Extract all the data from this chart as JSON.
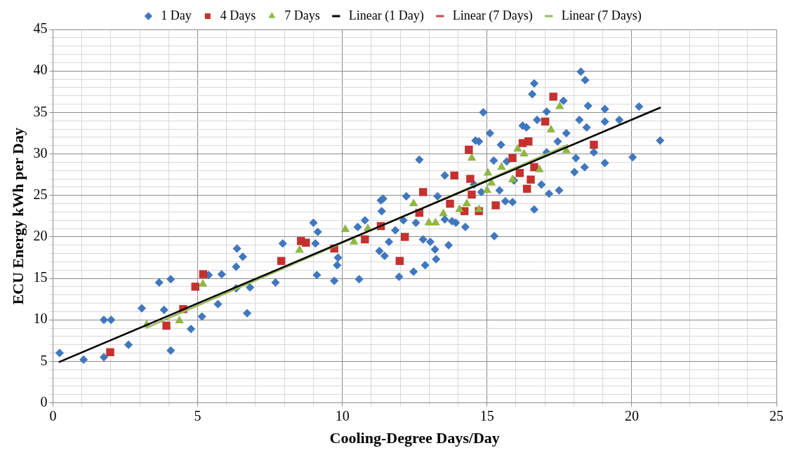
{
  "chart_data": {
    "type": "scatter",
    "xlabel": "Cooling-Degree Days/Day",
    "ylabel": "ECU Energy kWh per Day",
    "xlim": [
      0,
      25
    ],
    "ylim": [
      0,
      45
    ],
    "xticks": [
      0,
      {
        "value": 1,
        "label": null
      },
      {
        "value": 2,
        "label": null
      },
      {
        "value": 3,
        "label": null
      },
      {
        "value": 4,
        "label": null
      },
      5,
      {
        "value": 6,
        "label": null
      },
      {
        "value": 7,
        "label": null
      },
      {
        "value": 8,
        "label": null
      },
      {
        "value": 9,
        "label": null
      },
      10,
      {
        "value": 11,
        "label": null
      },
      {
        "value": 12,
        "label": null
      },
      {
        "value": 13,
        "label": null
      },
      {
        "value": 14,
        "label": null
      },
      15,
      {
        "value": 16,
        "label": null
      },
      {
        "value": 17,
        "label": null
      },
      {
        "value": 18,
        "label": null
      },
      {
        "value": 19,
        "label": null
      },
      20,
      {
        "value": 21,
        "label": null
      },
      {
        "value": 22,
        "label": null
      },
      {
        "value": 23,
        "label": null
      },
      {
        "value": 24,
        "label": null
      },
      25
    ],
    "yticks": [
      0,
      {
        "value": 1,
        "label": null
      },
      {
        "value": 2,
        "label": null
      },
      {
        "value": 3,
        "label": null
      },
      {
        "value": 4,
        "label": null
      },
      5,
      {
        "value": 6,
        "label": null
      },
      {
        "value": 7,
        "label": null
      },
      {
        "value": 8,
        "label": null
      },
      {
        "value": 9,
        "label": null
      },
      10,
      {
        "value": 11,
        "label": null
      },
      {
        "value": 12,
        "label": null
      },
      {
        "value": 13,
        "label": null
      },
      {
        "value": 14,
        "label": null
      },
      15,
      {
        "value": 16,
        "label": null
      },
      {
        "value": 17,
        "label": null
      },
      {
        "value": 18,
        "label": null
      },
      {
        "value": 19,
        "label": null
      },
      20,
      {
        "value": 21,
        "label": null
      },
      {
        "value": 22,
        "label": null
      },
      {
        "value": 23,
        "label": null
      },
      {
        "value": 24,
        "label": null
      },
      25,
      {
        "value": 26,
        "label": null
      },
      {
        "value": 27,
        "label": null
      },
      {
        "value": 28,
        "label": null
      },
      {
        "value": 29,
        "label": null
      },
      30,
      {
        "value": 31,
        "label": null
      },
      {
        "value": 32,
        "label": null
      },
      {
        "value": 33,
        "label": null
      },
      {
        "value": 34,
        "label": null
      },
      35,
      {
        "value": 36,
        "label": null
      },
      {
        "value": 37,
        "label": null
      },
      {
        "value": 38,
        "label": null
      },
      {
        "value": 39,
        "label": null
      },
      40,
      {
        "value": 41,
        "label": null
      },
      {
        "value": 42,
        "label": null
      },
      {
        "value": 43,
        "label": null
      },
      {
        "value": 44,
        "label": null
      },
      45
    ],
    "grid": true,
    "legend": "top",
    "series": [
      {
        "name": "1 Day",
        "marker": "diamond",
        "color": "#3f78c0",
        "x": [
          0.23,
          1.06,
          1.76,
          1.76,
          2.01,
          2.61,
          3.07,
          3.84,
          4.07,
          4.77,
          5.15,
          5.7,
          6.71,
          3.67,
          4.07,
          5.38,
          5.83,
          6.33,
          6.36,
          6.56,
          6.33,
          6.81,
          7.69,
          7.94,
          9.12,
          9.07,
          9.72,
          10.58,
          9.0,
          9.15,
          9.82,
          9.85,
          10.53,
          10.78,
          11.28,
          11.46,
          11.33,
          11.36,
          11.61,
          11.83,
          11.96,
          12.46,
          12.86,
          12.79,
          13.04,
          13.2,
          13.24,
          13.67,
          12.21,
          12.11,
          12.54,
          13.92,
          14.25,
          15.25,
          13.54,
          15.43,
          12.66,
          14.87,
          15.1,
          14.72,
          16.63,
          16.56,
          18.24,
          18.39,
          17.64,
          18.49,
          19.07,
          20.25,
          18.19,
          19.07,
          19.57,
          18.44,
          17.74,
          17.44,
          20.98,
          18.07,
          18.37,
          18.02,
          19.07,
          20.03,
          18.69,
          16.36,
          16.73,
          17.06,
          15.48,
          15.23,
          11.41,
          16.63,
          17.49,
          17.14,
          16.88,
          15.88,
          15.63,
          13.79,
          14.6,
          16.23,
          17.06,
          13.54,
          14.55,
          13.29,
          14.8,
          15.93,
          15.68
        ],
        "values": [
          6.0,
          5.2,
          5.5,
          10.0,
          10.0,
          7.0,
          11.4,
          11.2,
          6.3,
          8.9,
          10.4,
          11.9,
          10.8,
          14.5,
          14.9,
          15.4,
          15.5,
          16.4,
          18.6,
          17.6,
          13.8,
          13.9,
          14.5,
          19.2,
          15.4,
          19.2,
          14.7,
          14.9,
          21.7,
          20.6,
          16.6,
          17.5,
          21.2,
          22.0,
          18.3,
          17.7,
          24.4,
          23.1,
          19.4,
          20.8,
          15.2,
          15.8,
          16.6,
          19.7,
          19.4,
          18.5,
          17.3,
          19.0,
          24.9,
          22.0,
          21.7,
          21.7,
          21.2,
          20.1,
          27.4,
          25.6,
          29.3,
          35.0,
          32.5,
          31.5,
          38.5,
          37.2,
          39.9,
          38.9,
          36.4,
          35.8,
          35.4,
          35.7,
          34.1,
          33.9,
          34.1,
          33.2,
          32.5,
          31.5,
          31.6,
          29.5,
          28.4,
          27.8,
          28.9,
          29.6,
          30.2,
          33.2,
          34.1,
          35.1,
          31.1,
          29.2,
          24.6,
          23.3,
          25.6,
          25.2,
          26.3,
          24.2,
          24.3,
          21.9,
          31.6,
          33.4,
          30.2,
          22.1,
          26.3,
          24.9,
          25.4,
          26.8,
          29.1
        ]
      },
      {
        "name": "4 Days",
        "marker": "square",
        "color": "#c8302e",
        "x": [
          1.98,
          3.92,
          4.5,
          4.92,
          5.19,
          7.89,
          8.57,
          8.74,
          9.72,
          10.78,
          11.33,
          12.16,
          11.98,
          12.79,
          12.66,
          13.87,
          14.42,
          13.72,
          14.47,
          14.22,
          14.72,
          15.3,
          17.29,
          17.01,
          14.37,
          18.69,
          16.43,
          16.23,
          15.88,
          16.63,
          16.13,
          16.51,
          16.38
        ],
        "values": [
          6.1,
          9.3,
          11.3,
          14.0,
          15.5,
          17.1,
          19.5,
          19.3,
          18.6,
          19.7,
          21.3,
          20.0,
          17.1,
          25.4,
          22.9,
          27.4,
          27.0,
          24.0,
          25.1,
          23.1,
          23.1,
          23.8,
          36.9,
          33.9,
          30.5,
          31.1,
          31.5,
          31.3,
          29.5,
          28.4,
          27.7,
          26.9,
          25.8
        ]
      },
      {
        "name": "7 Days",
        "marker": "triangle",
        "color": "#8fb83e",
        "x": [
          3.24,
          4.37,
          5.18,
          8.52,
          10.1,
          10.4,
          10.88,
          12.46,
          12.99,
          13.22,
          13.49,
          14.05,
          14.3,
          14.72,
          15.0,
          17.51,
          17.21,
          17.74,
          14.47,
          16.06,
          16.28,
          16.81,
          15.5,
          15.88,
          15.03,
          15.15
        ],
        "values": [
          9.4,
          9.9,
          14.3,
          18.4,
          20.9,
          19.4,
          21.0,
          24.0,
          21.7,
          21.7,
          22.8,
          23.3,
          24.0,
          23.3,
          25.6,
          35.7,
          32.9,
          30.4,
          29.5,
          30.6,
          30.0,
          28.1,
          28.4,
          26.9,
          27.7,
          26.5
        ]
      },
      {
        "name": "Linear (1 Day)",
        "type": "line",
        "marker": "none",
        "color": "#000000",
        "x": [
          0.2,
          21.0
        ],
        "values": [
          4.9,
          35.6
        ]
      },
      {
        "name": "Linear (7 Days)",
        "type": "line",
        "marker": "none",
        "color": "#c0504d"
      },
      {
        "name": "Linear (7 Days)",
        "type": "line",
        "marker": "none",
        "color": "#9bbb59",
        "x": [
          3.2,
          17.8
        ],
        "values": [
          9.0,
          31.1
        ]
      }
    ]
  }
}
